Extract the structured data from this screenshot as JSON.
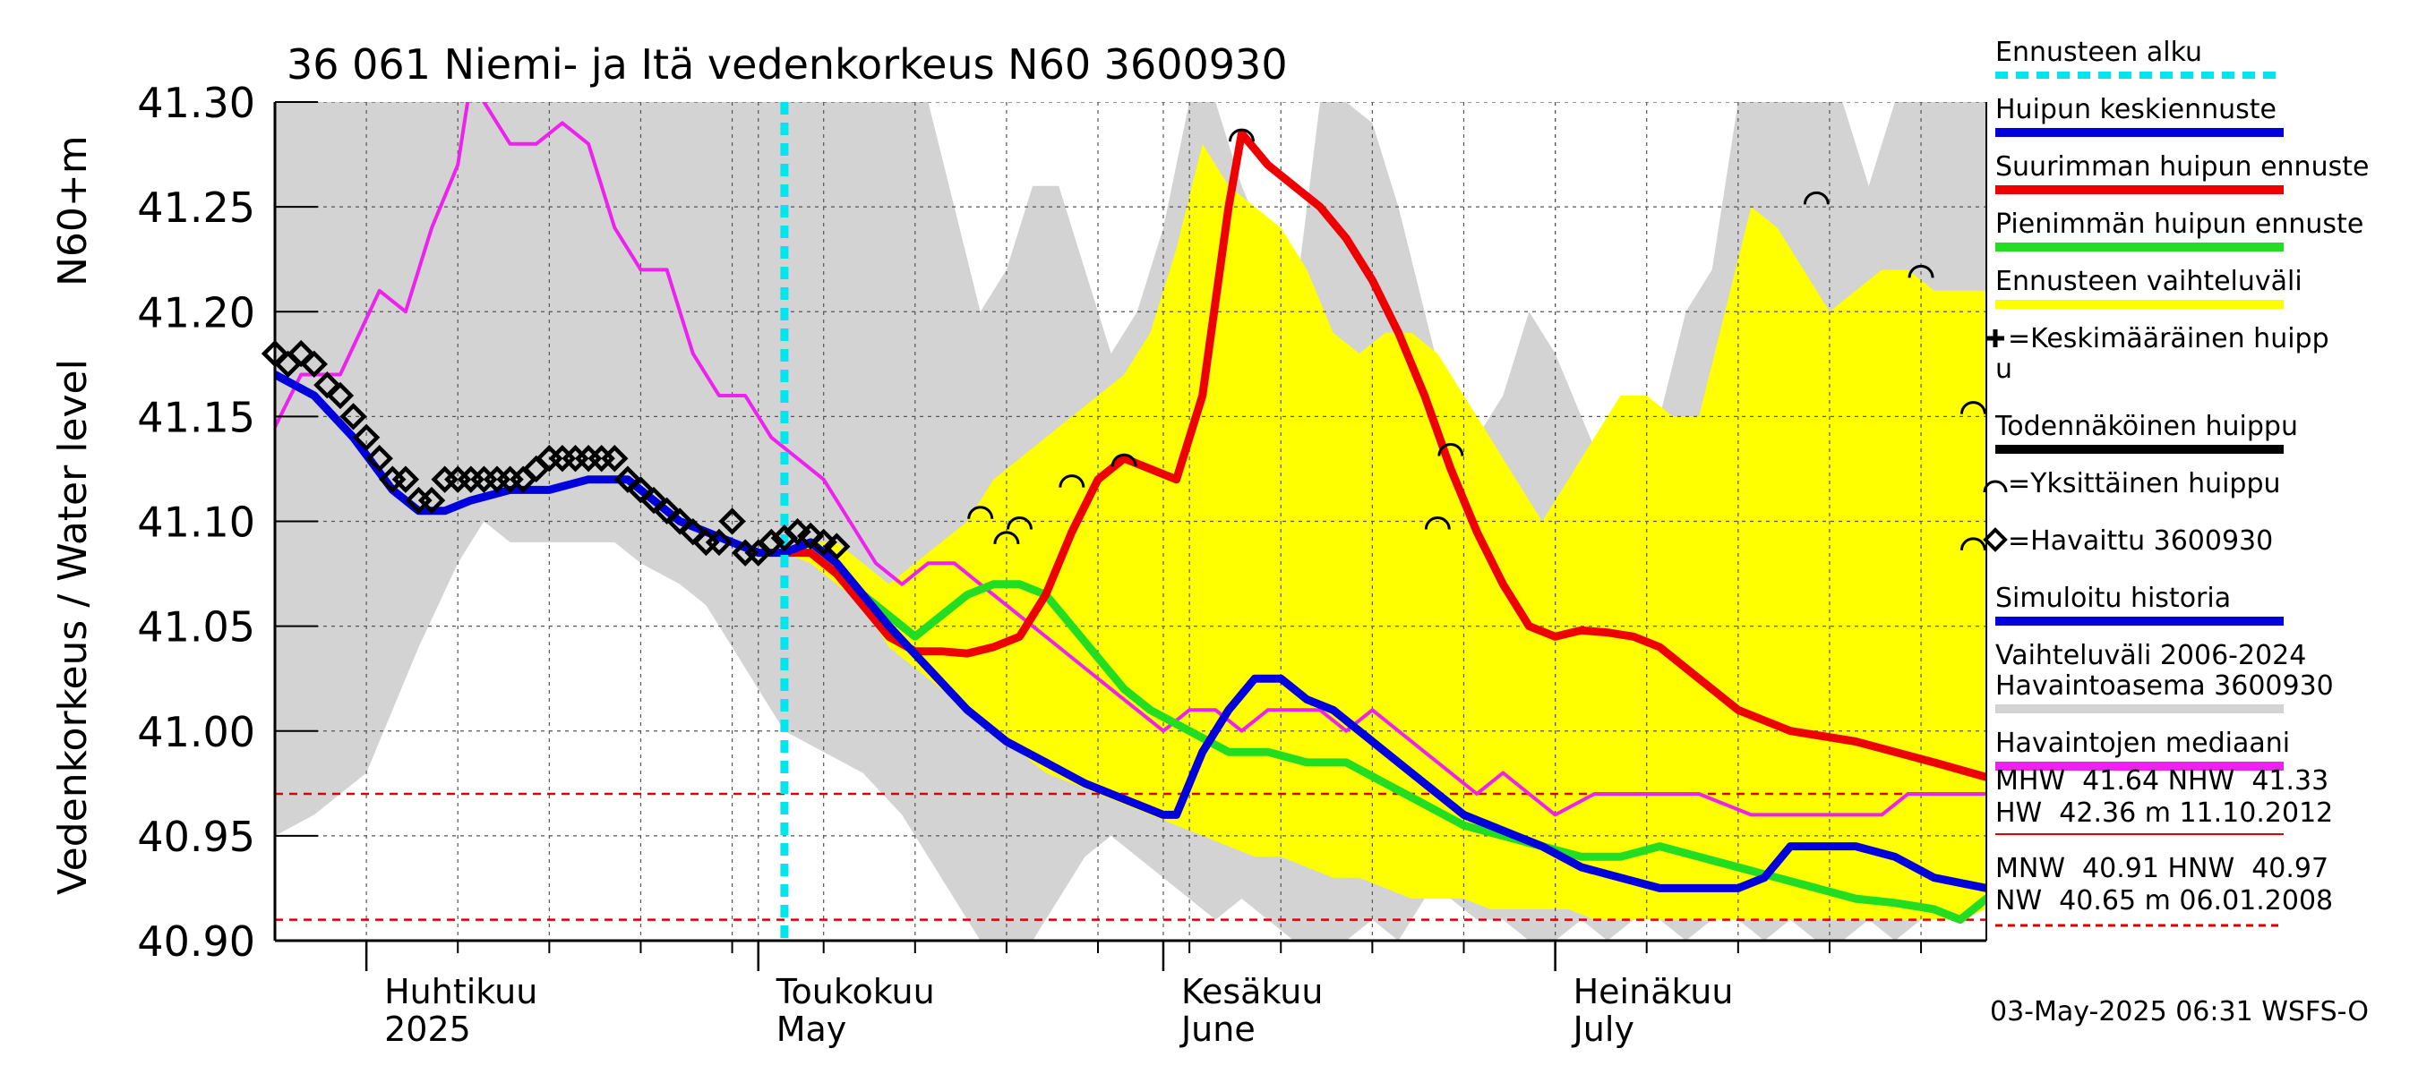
{
  "chart_data": {
    "type": "line",
    "title": "36 061 Niemi- ja Itä vedenkorkeus N60 3600930",
    "ylabel": "Vedenkorkeus / Water level",
    "ylabel_unit": "N60+m",
    "ylim": [
      40.9,
      41.3
    ],
    "yticks": [
      "41.30",
      "41.25",
      "41.20",
      "41.15",
      "41.10",
      "41.05",
      "41.00",
      "40.95",
      "40.90"
    ],
    "xlim": [
      "2025-03-25",
      "2025-08-03"
    ],
    "month_labels": [
      {
        "fi": "Huhtikuu",
        "en": "2025",
        "date": "2025-04-01"
      },
      {
        "fi": "Toukokuu",
        "en": "May",
        "date": "2025-05-01"
      },
      {
        "fi": "Kesäkuu",
        "en": "June",
        "date": "2025-06-01"
      },
      {
        "fi": "Heinäkuu",
        "en": "July",
        "date": "2025-07-01"
      }
    ],
    "forecast_start": "2025-05-03",
    "reference_lines": {
      "mhw_line": 40.97,
      "mnw_line": 40.91
    },
    "colors": {
      "history_band": "#d3d3d3",
      "forecast_band": "#ffff00",
      "mean_forecast": "#0000dd",
      "max_forecast": "#ee0000",
      "min_forecast": "#22dd22",
      "median": "#ee22ee",
      "forecast_start": "#00e5ee",
      "ref_line": "#dd0000"
    },
    "history_band": {
      "x": [
        "2025-03-25",
        "2025-03-28",
        "2025-04-01",
        "2025-04-05",
        "2025-04-08",
        "2025-04-10",
        "2025-04-12",
        "2025-04-15",
        "2025-04-18",
        "2025-04-20",
        "2025-04-22",
        "2025-04-25",
        "2025-04-27",
        "2025-04-29",
        "2025-05-01",
        "2025-05-03",
        "2025-05-06",
        "2025-05-09",
        "2025-05-12",
        "2025-05-14",
        "2025-05-16",
        "2025-05-18",
        "2025-05-20",
        "2025-05-22",
        "2025-05-24",
        "2025-05-26",
        "2025-05-28",
        "2025-05-30",
        "2025-06-01",
        "2025-06-03",
        "2025-06-05",
        "2025-06-07",
        "2025-06-09",
        "2025-06-11",
        "2025-06-13",
        "2025-06-15",
        "2025-06-17",
        "2025-06-19",
        "2025-06-21",
        "2025-06-23",
        "2025-06-25",
        "2025-06-27",
        "2025-06-29",
        "2025-07-01",
        "2025-07-03",
        "2025-07-05",
        "2025-07-07",
        "2025-07-09",
        "2025-07-11",
        "2025-07-13",
        "2025-07-15",
        "2025-07-17",
        "2025-07-19",
        "2025-07-21",
        "2025-07-23",
        "2025-07-25",
        "2025-07-27",
        "2025-07-29",
        "2025-07-31",
        "2025-08-03"
      ],
      "upper": [
        41.3,
        41.3,
        41.3,
        41.3,
        41.3,
        41.3,
        41.3,
        41.3,
        41.3,
        41.3,
        41.3,
        41.3,
        41.3,
        41.3,
        41.3,
        41.3,
        41.3,
        41.3,
        41.3,
        41.3,
        41.25,
        41.2,
        41.22,
        41.26,
        41.26,
        41.22,
        41.18,
        41.2,
        41.24,
        41.3,
        41.3,
        41.26,
        41.23,
        41.2,
        41.3,
        41.3,
        41.29,
        41.25,
        41.2,
        41.15,
        41.14,
        41.16,
        41.2,
        41.18,
        41.15,
        41.12,
        41.15,
        41.15,
        41.2,
        41.22,
        41.3,
        41.3,
        41.3,
        41.3,
        41.3,
        41.26,
        41.3,
        41.3,
        41.3,
        41.3
      ],
      "lower": [
        40.95,
        40.96,
        40.98,
        41.04,
        41.08,
        41.1,
        41.09,
        41.09,
        41.09,
        41.09,
        41.08,
        41.07,
        41.06,
        41.04,
        41.02,
        41.0,
        40.99,
        40.98,
        40.96,
        40.94,
        40.92,
        40.9,
        40.89,
        40.9,
        40.92,
        40.94,
        40.95,
        40.94,
        40.93,
        40.92,
        40.91,
        40.92,
        40.91,
        40.9,
        40.9,
        40.9,
        40.91,
        40.9,
        40.92,
        40.92,
        40.91,
        40.91,
        40.9,
        40.9,
        40.91,
        40.9,
        40.91,
        40.91,
        40.9,
        40.91,
        40.91,
        40.9,
        40.91,
        40.9,
        40.9,
        40.91,
        40.9,
        40.91,
        40.91,
        40.92
      ]
    },
    "forecast_band": {
      "x": [
        "2025-05-03",
        "2025-05-05",
        "2025-05-07",
        "2025-05-09",
        "2025-05-11",
        "2025-05-13",
        "2025-05-15",
        "2025-05-17",
        "2025-05-19",
        "2025-05-21",
        "2025-05-23",
        "2025-05-25",
        "2025-05-27",
        "2025-05-29",
        "2025-05-31",
        "2025-06-02",
        "2025-06-04",
        "2025-06-06",
        "2025-06-08",
        "2025-06-10",
        "2025-06-12",
        "2025-06-14",
        "2025-06-16",
        "2025-06-18",
        "2025-06-20",
        "2025-06-22",
        "2025-06-24",
        "2025-06-26",
        "2025-06-28",
        "2025-06-30",
        "2025-07-02",
        "2025-07-04",
        "2025-07-06",
        "2025-07-08",
        "2025-07-10",
        "2025-07-12",
        "2025-07-14",
        "2025-07-16",
        "2025-07-18",
        "2025-07-20",
        "2025-07-22",
        "2025-07-24",
        "2025-07-26",
        "2025-07-28",
        "2025-07-30",
        "2025-08-01",
        "2025-08-03"
      ],
      "upper": [
        41.085,
        41.09,
        41.09,
        41.08,
        41.07,
        41.08,
        41.09,
        41.1,
        41.12,
        41.13,
        41.14,
        41.15,
        41.16,
        41.17,
        41.19,
        41.23,
        41.28,
        41.26,
        41.25,
        41.24,
        41.22,
        41.19,
        41.18,
        41.19,
        41.19,
        41.18,
        41.16,
        41.14,
        41.12,
        41.1,
        41.12,
        41.14,
        41.16,
        41.16,
        41.15,
        41.15,
        41.2,
        41.25,
        41.24,
        41.22,
        41.2,
        41.21,
        41.22,
        41.22,
        41.21,
        41.21,
        41.21
      ],
      "lower": [
        41.085,
        41.08,
        41.07,
        41.06,
        41.04,
        41.03,
        41.02,
        41.01,
        41.0,
        40.99,
        40.98,
        40.975,
        40.97,
        40.965,
        40.96,
        40.955,
        40.95,
        40.945,
        40.94,
        40.94,
        40.935,
        40.93,
        40.93,
        40.925,
        40.92,
        40.92,
        40.92,
        40.915,
        40.915,
        40.915,
        40.915,
        40.91,
        40.91,
        40.91,
        40.91,
        40.91,
        40.91,
        40.91,
        40.91,
        40.91,
        40.91,
        40.91,
        40.91,
        40.91,
        40.91,
        40.91,
        40.915
      ]
    },
    "series": [
      {
        "name": "Havaintojen mediaani",
        "x": [
          "2025-03-25",
          "2025-03-27",
          "2025-03-30",
          "2025-04-02",
          "2025-04-04",
          "2025-04-06",
          "2025-04-08",
          "2025-04-09",
          "2025-04-10",
          "2025-04-11",
          "2025-04-12",
          "2025-04-14",
          "2025-04-16",
          "2025-04-18",
          "2025-04-20",
          "2025-04-22",
          "2025-04-24",
          "2025-04-26",
          "2025-04-28",
          "2025-04-30",
          "2025-05-02",
          "2025-05-04",
          "2025-05-06",
          "2025-05-08",
          "2025-05-10",
          "2025-05-12",
          "2025-05-14",
          "2025-05-16",
          "2025-05-18",
          "2025-05-20",
          "2025-05-22",
          "2025-05-24",
          "2025-05-26",
          "2025-05-28",
          "2025-05-30",
          "2025-06-01",
          "2025-06-03",
          "2025-06-05",
          "2025-06-07",
          "2025-06-09",
          "2025-06-11",
          "2025-06-13",
          "2025-06-15",
          "2025-06-17",
          "2025-06-19",
          "2025-06-21",
          "2025-06-23",
          "2025-06-25",
          "2025-06-27",
          "2025-06-29",
          "2025-07-01",
          "2025-07-04",
          "2025-07-08",
          "2025-07-12",
          "2025-07-16",
          "2025-07-20",
          "2025-07-24",
          "2025-07-26",
          "2025-07-28",
          "2025-07-30",
          "2025-08-01",
          "2025-08-03"
        ],
        "y": [
          41.145,
          41.17,
          41.17,
          41.21,
          41.2,
          41.24,
          41.27,
          41.31,
          41.3,
          41.29,
          41.28,
          41.28,
          41.29,
          41.28,
          41.24,
          41.22,
          41.22,
          41.18,
          41.16,
          41.16,
          41.14,
          41.13,
          41.12,
          41.1,
          41.08,
          41.07,
          41.08,
          41.08,
          41.07,
          41.06,
          41.05,
          41.04,
          41.03,
          41.02,
          41.01,
          41.0,
          41.01,
          41.01,
          41.0,
          41.01,
          41.01,
          41.01,
          41.0,
          41.01,
          41.0,
          40.99,
          40.98,
          40.97,
          40.98,
          40.97,
          40.96,
          40.97,
          40.97,
          40.97,
          40.96,
          40.96,
          40.96,
          40.96,
          40.97,
          40.97,
          40.97,
          40.97
        ]
      },
      {
        "name": "Simuloitu historia",
        "x": [
          "2025-03-25",
          "2025-03-28",
          "2025-03-31",
          "2025-04-03",
          "2025-04-05",
          "2025-04-07",
          "2025-04-09",
          "2025-04-12",
          "2025-04-15",
          "2025-04-18",
          "2025-04-21",
          "2025-04-23",
          "2025-04-25",
          "2025-04-27",
          "2025-04-29",
          "2025-05-01",
          "2025-05-03",
          "2025-05-05",
          "2025-05-07",
          "2025-05-09",
          "2025-05-11",
          "2025-05-14",
          "2025-05-17",
          "2025-05-20",
          "2025-05-23",
          "2025-05-26",
          "2025-05-28",
          "2025-05-30",
          "2025-06-01",
          "2025-06-02",
          "2025-06-04",
          "2025-06-06",
          "2025-06-08",
          "2025-06-10",
          "2025-06-12",
          "2025-06-14",
          "2025-06-16",
          "2025-06-18",
          "2025-06-20",
          "2025-06-22",
          "2025-06-24",
          "2025-06-26",
          "2025-06-28",
          "2025-06-30",
          "2025-07-03",
          "2025-07-06",
          "2025-07-09",
          "2025-07-12",
          "2025-07-15",
          "2025-07-17",
          "2025-07-19",
          "2025-07-21",
          "2025-07-24",
          "2025-07-27",
          "2025-07-30",
          "2025-08-03"
        ],
        "y": [
          41.17,
          41.16,
          41.14,
          41.115,
          41.105,
          41.105,
          41.11,
          41.115,
          41.115,
          41.12,
          41.12,
          41.11,
          41.1,
          41.095,
          41.09,
          41.085,
          41.085,
          41.09,
          41.08,
          41.065,
          41.05,
          41.03,
          41.01,
          40.995,
          40.985,
          40.975,
          40.97,
          40.965,
          40.96,
          40.96,
          40.99,
          41.01,
          41.025,
          41.025,
          41.015,
          41.01,
          41.0,
          40.99,
          40.98,
          40.97,
          40.96,
          40.955,
          40.95,
          40.945,
          40.935,
          40.93,
          40.925,
          40.925,
          40.925,
          40.93,
          40.945,
          40.945,
          40.945,
          40.94,
          40.93,
          40.925
        ]
      },
      {
        "name": "Pienimmän huipun ennuste",
        "x": [
          "2025-05-03",
          "2025-05-05",
          "2025-05-07",
          "2025-05-09",
          "2025-05-11",
          "2025-05-13",
          "2025-05-15",
          "2025-05-17",
          "2025-05-19",
          "2025-05-21",
          "2025-05-23",
          "2025-05-25",
          "2025-05-27",
          "2025-05-29",
          "2025-05-31",
          "2025-06-03",
          "2025-06-06",
          "2025-06-09",
          "2025-06-12",
          "2025-06-15",
          "2025-06-18",
          "2025-06-21",
          "2025-06-24",
          "2025-06-27",
          "2025-06-30",
          "2025-07-03",
          "2025-07-06",
          "2025-07-09",
          "2025-07-12",
          "2025-07-15",
          "2025-07-18",
          "2025-07-21",
          "2025-07-24",
          "2025-07-27",
          "2025-07-30",
          "2025-08-01",
          "2025-08-03"
        ],
        "y": [
          41.085,
          41.09,
          41.08,
          41.065,
          41.055,
          41.045,
          41.055,
          41.065,
          41.07,
          41.07,
          41.065,
          41.05,
          41.035,
          41.02,
          41.01,
          41.0,
          40.99,
          40.99,
          40.985,
          40.985,
          40.975,
          40.965,
          40.955,
          40.95,
          40.945,
          40.94,
          40.94,
          40.945,
          40.94,
          40.935,
          40.93,
          40.925,
          40.92,
          40.918,
          40.915,
          40.91,
          40.92
        ]
      },
      {
        "name": "Suurimman huipun ennuste",
        "x": [
          "2025-05-03",
          "2025-05-05",
          "2025-05-07",
          "2025-05-09",
          "2025-05-11",
          "2025-05-13",
          "2025-05-15",
          "2025-05-17",
          "2025-05-19",
          "2025-05-21",
          "2025-05-23",
          "2025-05-25",
          "2025-05-27",
          "2025-05-29",
          "2025-05-31",
          "2025-06-02",
          "2025-06-04",
          "2025-06-06",
          "2025-06-07",
          "2025-06-09",
          "2025-06-11",
          "2025-06-13",
          "2025-06-15",
          "2025-06-17",
          "2025-06-19",
          "2025-06-21",
          "2025-06-23",
          "2025-06-25",
          "2025-06-27",
          "2025-06-29",
          "2025-07-01",
          "2025-07-03",
          "2025-07-05",
          "2025-07-07",
          "2025-07-09",
          "2025-07-11",
          "2025-07-13",
          "2025-07-15",
          "2025-07-17",
          "2025-07-19",
          "2025-07-21",
          "2025-07-24",
          "2025-07-27",
          "2025-07-30",
          "2025-08-03"
        ],
        "y": [
          41.085,
          41.085,
          41.075,
          41.06,
          41.045,
          41.038,
          41.038,
          41.037,
          41.04,
          41.045,
          41.065,
          41.095,
          41.12,
          41.13,
          41.125,
          41.12,
          41.16,
          41.25,
          41.285,
          41.27,
          41.26,
          41.25,
          41.235,
          41.215,
          41.19,
          41.16,
          41.125,
          41.095,
          41.07,
          41.05,
          41.045,
          41.048,
          41.047,
          41.045,
          41.04,
          41.03,
          41.02,
          41.01,
          41.005,
          41.0,
          40.998,
          40.995,
          40.99,
          40.985,
          40.978
        ]
      }
    ],
    "observations": {
      "name": "Havaittu 3600930",
      "x": [
        "2025-03-25",
        "2025-03-26",
        "2025-03-27",
        "2025-03-28",
        "2025-03-29",
        "2025-03-30",
        "2025-03-31",
        "2025-04-01",
        "2025-04-02",
        "2025-04-03",
        "2025-04-04",
        "2025-04-05",
        "2025-04-06",
        "2025-04-07",
        "2025-04-08",
        "2025-04-09",
        "2025-04-10",
        "2025-04-11",
        "2025-04-12",
        "2025-04-13",
        "2025-04-14",
        "2025-04-15",
        "2025-04-16",
        "2025-04-17",
        "2025-04-18",
        "2025-04-19",
        "2025-04-20",
        "2025-04-21",
        "2025-04-22",
        "2025-04-23",
        "2025-04-24",
        "2025-04-25",
        "2025-04-26",
        "2025-04-27",
        "2025-04-28",
        "2025-04-29",
        "2025-04-30",
        "2025-05-01",
        "2025-05-02",
        "2025-05-03",
        "2025-05-04",
        "2025-05-05",
        "2025-05-06",
        "2025-05-07"
      ],
      "y": [
        41.18,
        41.175,
        41.18,
        41.175,
        41.165,
        41.16,
        41.15,
        41.14,
        41.13,
        41.12,
        41.12,
        41.11,
        41.11,
        41.12,
        41.12,
        41.12,
        41.12,
        41.12,
        41.12,
        41.12,
        41.125,
        41.13,
        41.13,
        41.13,
        41.13,
        41.13,
        41.13,
        41.12,
        41.115,
        41.11,
        41.105,
        41.1,
        41.095,
        41.09,
        41.09,
        41.1,
        41.085,
        41.085,
        41.09,
        41.092,
        41.095,
        41.093,
        41.09,
        41.088
      ]
    },
    "single_peaks": {
      "x": [
        "2025-05-18",
        "2025-05-20",
        "2025-05-21",
        "2025-05-25",
        "2025-05-29",
        "2025-06-07",
        "2025-06-22",
        "2025-06-23",
        "2025-07-21",
        "2025-07-29",
        "2025-08-02",
        "2025-08-02"
      ],
      "y": [
        41.105,
        41.093,
        41.1,
        41.12,
        41.13,
        41.285,
        41.1,
        41.135,
        41.255,
        41.22,
        41.155,
        41.09
      ]
    },
    "legend": [
      {
        "label": "Ennusteen alku",
        "style": "dash",
        "color": "#00e5ee"
      },
      {
        "label": "Huipun keskiennuste",
        "style": "line",
        "color": "#0000dd"
      },
      {
        "label": "Suurimman huipun ennuste",
        "style": "line",
        "color": "#ee0000"
      },
      {
        "label": "Pienimmän huipun ennuste",
        "style": "line",
        "color": "#22dd22"
      },
      {
        "label": "Ennusteen vaihteluväli",
        "style": "line",
        "color": "#ffff00"
      },
      {
        "label": "=Keskimääräinen huipp",
        "label2": "u",
        "style": "plus"
      },
      {
        "label": "Todennäköinen huippu",
        "style": "line",
        "color": "#000000"
      },
      {
        "label": "=Yksittäinen huippu",
        "style": "arc"
      },
      {
        "label": "=Havaittu 3600930",
        "style": "diamond"
      },
      {
        "label": "Simuloitu historia",
        "style": "line",
        "color": "#0000dd"
      },
      {
        "label": "Vaihteluväli 2006-2024",
        "label2": " Havaintoasema 3600930",
        "style": "line",
        "color": "#d3d3d3"
      },
      {
        "label": "Havaintojen mediaani",
        "style": "line",
        "color": "#ee22ee"
      }
    ],
    "stats": {
      "row1": "MHW  41.64 NHW  41.33",
      "row2": "HW  42.36 m 11.10.2012",
      "row3": "MNW  40.91 HNW  40.97",
      "row4": "NW  40.65 m 06.01.2008"
    },
    "footer": "03-May-2025 06:31 WSFS-O"
  }
}
